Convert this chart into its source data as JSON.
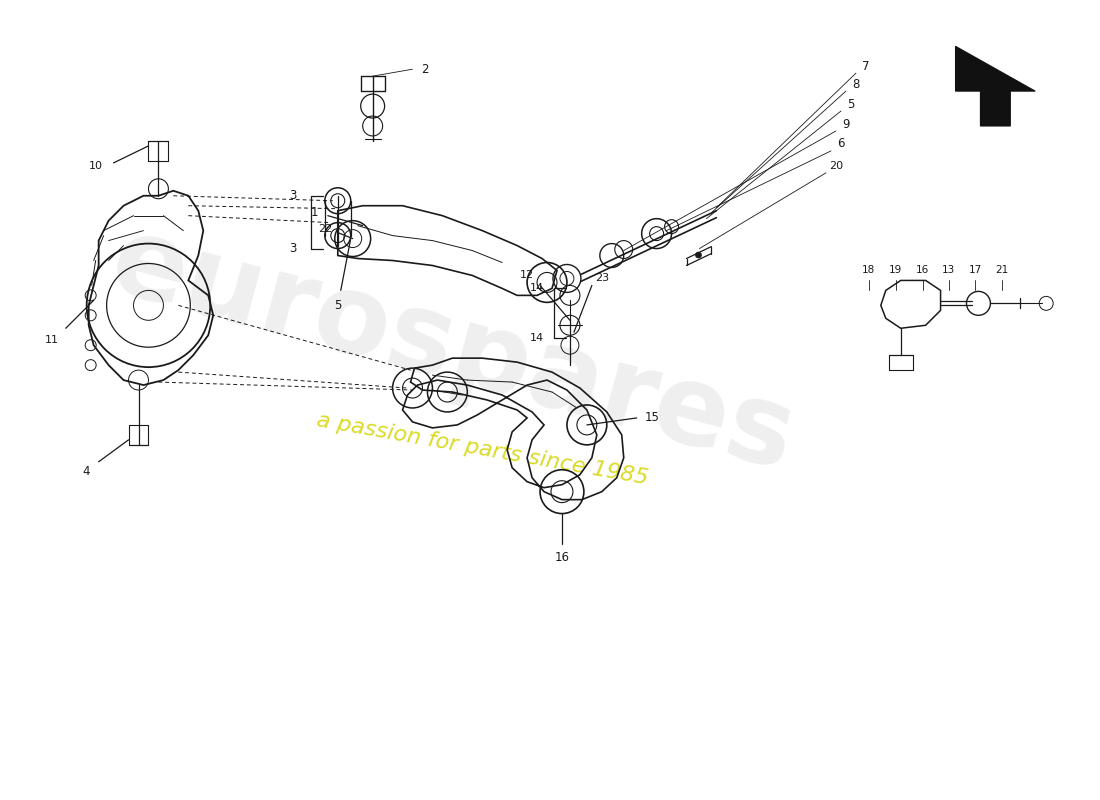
{
  "background_color": "#ffffff",
  "fig_width": 11.0,
  "fig_height": 8.0,
  "dpi": 100,
  "watermark_text1": "eurospares",
  "watermark_text2": "a passion for parts since 1985",
  "watermark_color1": "#cccccc",
  "watermark_color2": "#d4d400",
  "line_color": "#1a1a1a",
  "sketch_color": "#1a1a1a"
}
